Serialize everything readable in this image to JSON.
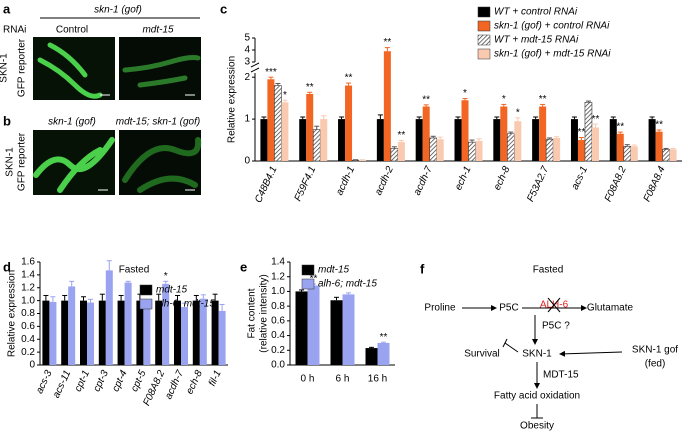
{
  "panel_a": {
    "label": "a",
    "rnai": "RNAi",
    "genotype": "skn-1 (gof)",
    "columns": [
      "Control",
      "mdt-15"
    ],
    "row_label": [
      "SKN-1",
      "GFP reporter"
    ]
  },
  "panel_b": {
    "label": "b",
    "columns": [
      "skn-1 (gof)",
      "mdt-15; skn-1 (gof)"
    ],
    "row_label": [
      "SKN-1",
      "GFP reporter"
    ]
  },
  "chart_data": [
    {
      "type": "bar",
      "panel": "c",
      "ylabel": "Relative expression",
      "categories": [
        "C48B4.1",
        "F59F4.1",
        "acdh-1",
        "acdh-2",
        "acdh-7",
        "ech-1",
        "ech-8",
        "F53A2.7",
        "acs-1",
        "F08A8.2",
        "F08A8.4"
      ],
      "series": [
        {
          "name": "WT + control RNAi",
          "color": "#000000",
          "values": [
            1,
            1,
            1,
            1,
            1,
            1,
            1,
            1,
            1,
            1,
            1
          ],
          "errors": [
            0.05,
            0.05,
            0.05,
            0.1,
            0.05,
            0.05,
            0.05,
            0.05,
            0.05,
            0.05,
            0.05
          ],
          "significance": [
            null,
            null,
            null,
            null,
            null,
            null,
            null,
            null,
            null,
            null,
            null
          ]
        },
        {
          "name": "skn-1 (gof) + control RNAi",
          "color": "#f26522",
          "values": [
            1.95,
            1.6,
            1.8,
            3.9,
            1.3,
            1.45,
            1.3,
            1.3,
            0.5,
            0.65,
            0.7
          ],
          "errors": [
            0.05,
            0.04,
            0.06,
            0.3,
            0.04,
            0.04,
            0.05,
            0.05,
            0.06,
            0.04,
            0.04
          ],
          "significance": [
            "***",
            "**",
            "**",
            "**",
            "**",
            "*",
            "*",
            "**",
            "**",
            "**",
            "**"
          ]
        },
        {
          "name": "WT + mdt-15 RNAi",
          "color": "#888888",
          "hatch": true,
          "values": [
            1.8,
            0.75,
            0.02,
            0.3,
            0.55,
            0.45,
            0.65,
            0.52,
            1.4,
            0.35,
            0.28
          ],
          "errors": [
            0.05,
            0.08,
            0.01,
            0.04,
            0.04,
            0.05,
            0.04,
            0.03,
            0.03,
            0.04,
            0.02
          ],
          "significance": [
            null,
            null,
            null,
            null,
            null,
            null,
            null,
            null,
            null,
            null,
            null
          ]
        },
        {
          "name": "skn-1 (gof) + mdt-15 RNAi",
          "color": "#f9c9b0",
          "values": [
            1.4,
            1.0,
            0.02,
            0.45,
            0.52,
            0.48,
            0.95,
            0.55,
            0.8,
            0.35,
            0.28
          ],
          "errors": [
            0.05,
            0.08,
            0.01,
            0.04,
            0.05,
            0.05,
            0.08,
            0.03,
            0.08,
            0.03,
            0.02
          ],
          "significance": [
            "*",
            null,
            null,
            "**",
            null,
            null,
            "*",
            null,
            "**",
            null,
            null
          ]
        }
      ],
      "ylim": [
        0,
        5
      ],
      "y_break": [
        2.1,
        3
      ],
      "yticks": [
        0,
        1,
        2,
        3,
        4,
        5
      ],
      "legend": "upper right"
    },
    {
      "type": "bar",
      "panel": "d",
      "title": "Fasted",
      "ylabel": "Relative expression",
      "categories": [
        "acs-3",
        "acs-11",
        "cpt-1",
        "cpt-3",
        "cpt-4",
        "cpt-5",
        "F08A8.2",
        "acdh-7",
        "ech-8",
        "fil-1"
      ],
      "series": [
        {
          "name": "mdt-15",
          "color": "#000000",
          "values": [
            1,
            1,
            1,
            1,
            1,
            1,
            1,
            1,
            1,
            1
          ],
          "errors": [
            0.08,
            0.08,
            0.06,
            0.1,
            0.08,
            0.1,
            0.1,
            0.08,
            0.08,
            0.1
          ],
          "significance": [
            null,
            null,
            null,
            null,
            null,
            null,
            null,
            null,
            null,
            null
          ]
        },
        {
          "name": "alh-6; mdt-15",
          "color": "#9aa3f0",
          "values": [
            0.98,
            1.22,
            0.97,
            1.47,
            1.28,
            0.88,
            1.26,
            0.9,
            1.03,
            0.84
          ],
          "errors": [
            0.08,
            0.08,
            0.05,
            0.15,
            0.02,
            0.06,
            0.04,
            0.06,
            0.06,
            0.1
          ],
          "significance": [
            null,
            null,
            null,
            null,
            null,
            null,
            "*",
            null,
            null,
            null
          ]
        }
      ],
      "ylim": [
        0,
        1.6
      ],
      "yticks": [
        0,
        0.2,
        0.4,
        0.6,
        0.8,
        {
          "value": 1,
          "label": "1.0"
        },
        1.2,
        1.4,
        1.6
      ],
      "legend": "upper right"
    },
    {
      "type": "bar",
      "panel": "e",
      "ylabel": [
        "Fat content",
        "(relative intensity)"
      ],
      "categories": [
        "0 h",
        "6 h",
        "16 h"
      ],
      "series": [
        {
          "name": "mdt-15",
          "color": "#000000",
          "values": [
            1.0,
            0.88,
            0.23
          ],
          "errors": [
            0.02,
            0.04,
            0.01
          ],
          "significance": [
            null,
            null,
            null
          ]
        },
        {
          "name": "alh-6; mdt-15",
          "color": "#9aa3f0",
          "values": [
            1.08,
            0.96,
            0.3
          ],
          "errors": [
            0.02,
            0.02,
            0.01
          ],
          "significance": [
            "**",
            null,
            "**"
          ]
        }
      ],
      "ylim": [
        0,
        1.4
      ],
      "yticks": [
        {
          "value": 0,
          "label": "0.0"
        },
        0.2,
        0.4,
        0.6,
        0.8,
        {
          "value": 1,
          "label": "1.0"
        },
        1.2,
        1.4
      ],
      "legend": "upper right"
    }
  ],
  "panel_f": {
    "label": "f",
    "title": "Fasted",
    "proline": "Proline",
    "p5c": "P5C",
    "enzyme": "ALH-6",
    "glutamate": "Glutamate",
    "p5c_q": "P5C ?",
    "survival": "Survival",
    "skn1": "SKN-1",
    "gof": "SKN-1 gof",
    "fed": "(fed)",
    "mdt15": "MDT-15",
    "fao": "Fatty acid oxidation",
    "obesity": "Obesity"
  }
}
